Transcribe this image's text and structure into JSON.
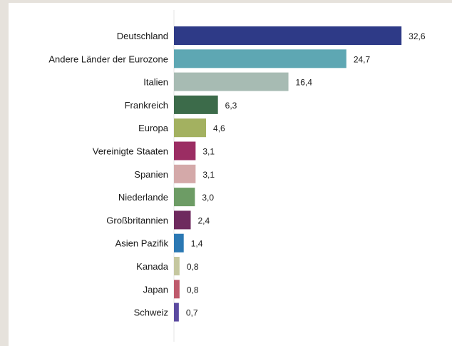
{
  "chart_data": {
    "type": "bar",
    "orientation": "horizontal",
    "categories": [
      "Deutschland",
      "Andere Länder der Eurozone",
      "Italien",
      "Frankreich",
      "Europa",
      "Vereinigte Staaten",
      "Spanien",
      "Niederlande",
      "Großbritannien",
      "Asien Pazifik",
      "Kanada",
      "Japan",
      "Schweiz"
    ],
    "values": [
      32.6,
      24.7,
      16.4,
      6.3,
      4.6,
      3.1,
      3.1,
      3.0,
      2.4,
      1.4,
      0.8,
      0.8,
      0.7
    ],
    "value_labels": [
      "32,6",
      "24,7",
      "16,4",
      "6,3",
      "4,6",
      "3,1",
      "3,1",
      "3,0",
      "2,4",
      "1,4",
      "0,8",
      "0,8",
      "0,7"
    ],
    "colors": [
      "#2e3a87",
      "#5ea7b3",
      "#a7bbb3",
      "#3c6b4a",
      "#a3b160",
      "#9b2d63",
      "#d4a9a9",
      "#6d9c65",
      "#6e2a5e",
      "#2b78b3",
      "#c5c79f",
      "#be5a6c",
      "#5b4aa0"
    ],
    "title": "",
    "xlabel": "",
    "ylabel": "",
    "xlim": [
      0,
      35
    ],
    "grid": false,
    "legend": "none"
  }
}
